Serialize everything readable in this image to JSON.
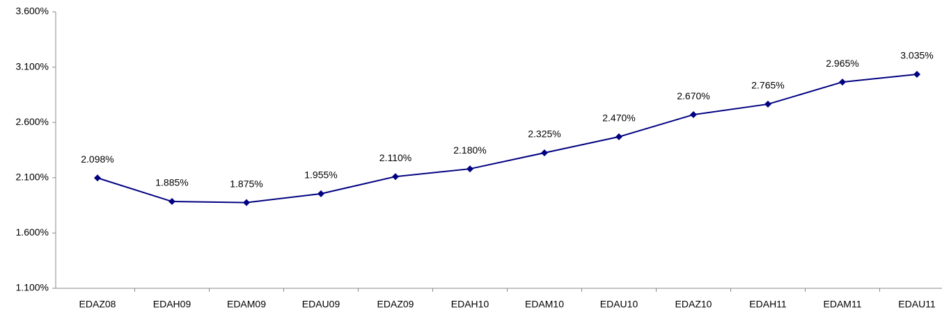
{
  "chart_data": {
    "type": "line",
    "categories": [
      "EDAZ08",
      "EDAH09",
      "EDAM09",
      "EDAU09",
      "EDAZ09",
      "EDAH10",
      "EDAM10",
      "EDAU10",
      "EDAZ10",
      "EDAH11",
      "EDAM11",
      "EDAU11"
    ],
    "series": [
      {
        "color": "#000080",
        "values": [
          2.098,
          1.885,
          1.875,
          1.955,
          2.11,
          2.18,
          2.325,
          2.47,
          2.67,
          2.765,
          2.965,
          3.035
        ],
        "value_labels": [
          "2.098%",
          "1.885%",
          "1.875%",
          "1.955%",
          "2.110%",
          "2.180%",
          "2.325%",
          "2.470%",
          "2.670%",
          "2.765%",
          "2.965%",
          "3.035%"
        ]
      }
    ],
    "ylim": [
      1.1,
      3.6
    ],
    "yticks": [
      {
        "value": 1.1,
        "label": "1.100%"
      },
      {
        "value": 1.6,
        "label": "1.600%"
      },
      {
        "value": 2.1,
        "label": "2.100%"
      },
      {
        "value": 2.6,
        "label": "2.600%"
      },
      {
        "value": 3.1,
        "label": "3.100%"
      },
      {
        "value": 3.6,
        "label": "3.600%"
      }
    ],
    "grid": false
  }
}
